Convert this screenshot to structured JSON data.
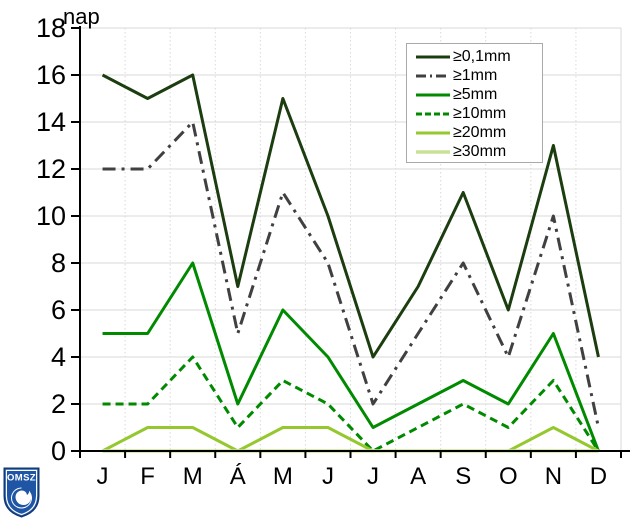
{
  "logo": {
    "text": "OMSZ",
    "shield_color": "#1f55a5",
    "accent_color": "#ffffff"
  },
  "chart_data": {
    "type": "line",
    "title": "",
    "ylabel": "nap",
    "xlabel": "",
    "categories": [
      "J",
      "F",
      "M",
      "Á",
      "M",
      "J",
      "J",
      "A",
      "S",
      "O",
      "N",
      "D"
    ],
    "ylim": [
      0,
      18
    ],
    "yticks": [
      0,
      2,
      4,
      6,
      8,
      10,
      12,
      14,
      16,
      18
    ],
    "grid": true,
    "legend_position": "top-right",
    "series": [
      {
        "name": "≥0,1mm",
        "color": "#1c3d0f",
        "style": "solid",
        "width": 3,
        "values": [
          16,
          15,
          16,
          7,
          15,
          10,
          4,
          7,
          11,
          6,
          13,
          4
        ]
      },
      {
        "name": "≥1mm",
        "color": "#404040",
        "style": "dashdot",
        "width": 3,
        "values": [
          12,
          12,
          14,
          5,
          11,
          8,
          2,
          5,
          8,
          4,
          10,
          1
        ]
      },
      {
        "name": "≥5mm",
        "color": "#008a00",
        "style": "solid",
        "width": 3,
        "values": [
          5,
          5,
          8,
          2,
          6,
          4,
          1,
          2,
          3,
          2,
          5,
          0
        ]
      },
      {
        "name": "≥10mm",
        "color": "#008a00",
        "style": "dashed",
        "width": 3,
        "values": [
          2,
          2,
          4,
          1,
          3,
          2,
          0,
          1,
          2,
          1,
          3,
          0
        ]
      },
      {
        "name": "≥20mm",
        "color": "#95c82e",
        "style": "solid",
        "width": 3,
        "values": [
          0,
          1,
          1,
          0,
          1,
          1,
          0,
          0,
          0,
          0,
          1,
          0
        ]
      },
      {
        "name": "≥30mm",
        "color": "#c8e296",
        "style": "solid",
        "width": 3.5,
        "values": [
          0,
          0,
          0,
          0,
          0,
          0,
          0,
          0,
          0,
          0,
          0,
          0
        ]
      }
    ],
    "colors": {
      "gridline": "#d9d9d9",
      "axis": "#000000",
      "background": "#ffffff"
    }
  }
}
